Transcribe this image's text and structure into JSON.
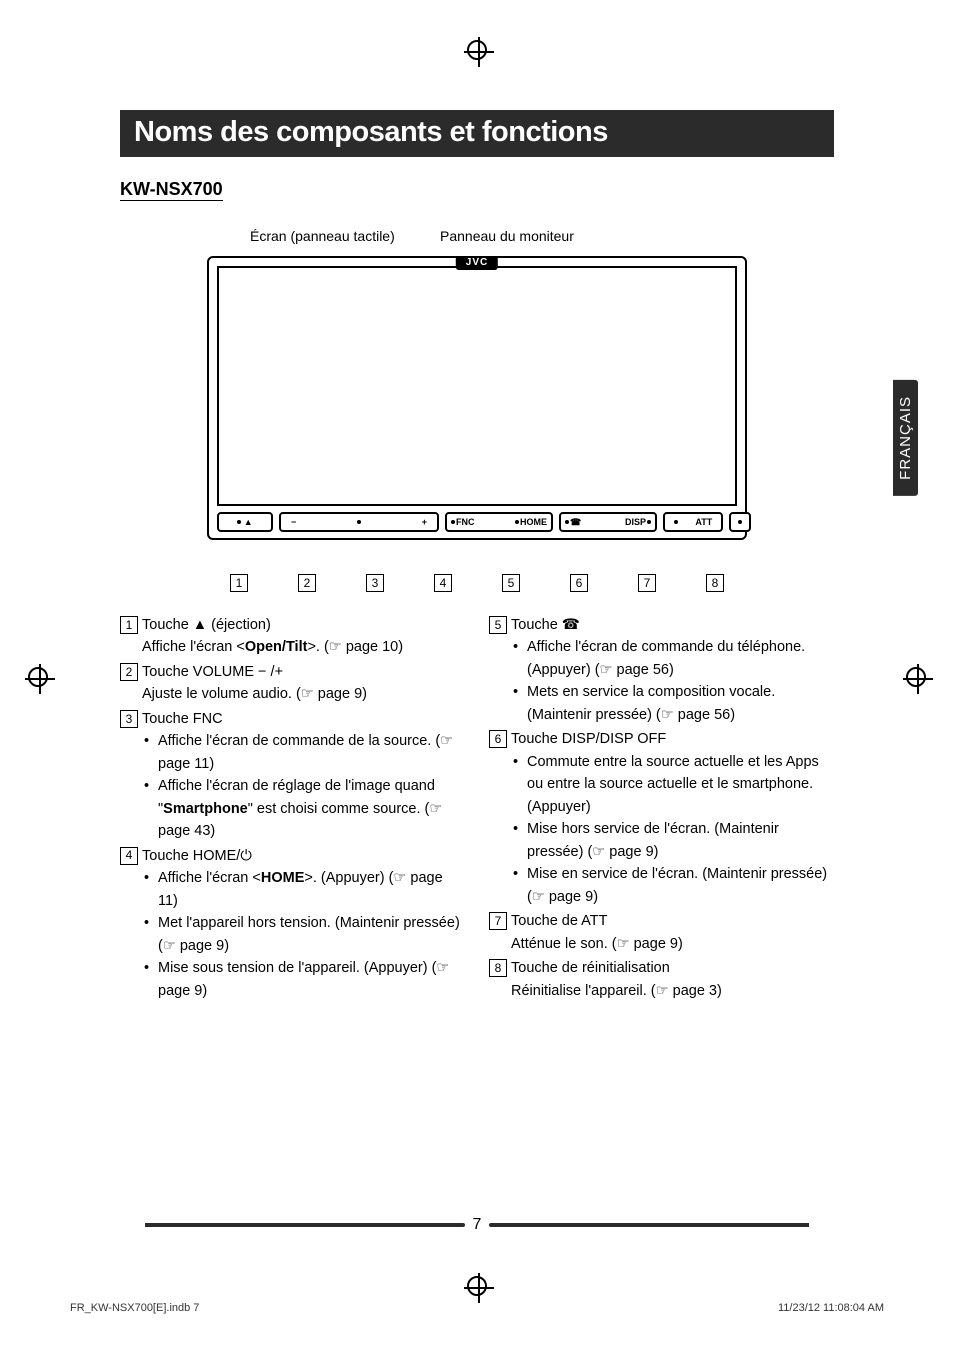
{
  "language_tab": "FRANÇAIS",
  "title": "Noms des composants et fonctions",
  "model": "KW-NSX700",
  "diagram": {
    "screen_label": "Écran (panneau tactile)",
    "panel_label": "Panneau du moniteur",
    "brand": "JVC",
    "buttons": {
      "eject_sym": "▲",
      "vol_minus": "−",
      "vol_plus": "+",
      "fnc": "FNC",
      "home": "HOME",
      "disp": "DISP",
      "att": "ATT"
    },
    "callouts": [
      "1",
      "2",
      "3",
      "4",
      "5",
      "6",
      "7",
      "8"
    ]
  },
  "entries_left": [
    {
      "num": "1",
      "head": [
        "Touche ▲ (éjection)"
      ],
      "body": [
        {
          "text": "Affiche l'écran <<b>Open/Tilt</b>>. (☞ page 10)"
        }
      ]
    },
    {
      "num": "2",
      "head": [
        "Touche VOLUME − /+"
      ],
      "body": [
        {
          "text": "Ajuste le volume audio. (☞ page 9)"
        }
      ]
    },
    {
      "num": "3",
      "head": [
        "Touche FNC"
      ],
      "body": [
        {
          "bullet": true,
          "text": "Affiche l'écran de commande de la source. (☞ page 11)"
        },
        {
          "bullet": true,
          "text": "Affiche l'écran de réglage de l'image quand \"<b>Smartphone</b>\" est choisi comme source. (☞ page 43)"
        }
      ]
    },
    {
      "num": "4",
      "head": [
        "Touche HOME/⏻"
      ],
      "body": [
        {
          "bullet": true,
          "text": "Affiche l'écran <<b>HOME</b>>. (Appuyer) (☞ page 11)"
        },
        {
          "bullet": true,
          "text": "Met l'appareil hors tension. (Maintenir pressée) (☞ page 9)"
        },
        {
          "bullet": true,
          "text": "Mise sous tension de l'appareil. (Appuyer) (☞ page 9)"
        }
      ]
    }
  ],
  "entries_right": [
    {
      "num": "5",
      "head": [
        "Touche ☎"
      ],
      "body": [
        {
          "bullet": true,
          "text": "Affiche l'écran de commande du téléphone. (Appuyer) (☞ page 56)"
        },
        {
          "bullet": true,
          "text": "Mets en service la composition vocale. (Maintenir pressée) (☞ page 56)"
        }
      ]
    },
    {
      "num": "6",
      "head": [
        "Touche DISP/DISP OFF"
      ],
      "body": [
        {
          "bullet": true,
          "text": "Commute entre la source actuelle et les Apps ou entre la source actuelle et le smartphone. (Appuyer)"
        },
        {
          "bullet": true,
          "text": "Mise hors service de l'écran. (Maintenir pressée) (☞ page 9)"
        },
        {
          "bullet": true,
          "text": "Mise en service de l'écran. (Maintenir pressée) (☞ page 9)"
        }
      ]
    },
    {
      "num": "7",
      "head": [
        "Touche de ATT"
      ],
      "body": [
        {
          "text": "Atténue le son. (☞ page 9)"
        }
      ]
    },
    {
      "num": "8",
      "head": [
        "Touche de réinitialisation"
      ],
      "body": [
        {
          "text": "Réinitialise l'appareil. (☞ page 3)"
        }
      ]
    }
  ],
  "page_number": "7",
  "footer_left": "FR_KW-NSX700[E].indb   7",
  "footer_right": "11/23/12   11:08:04 AM"
}
